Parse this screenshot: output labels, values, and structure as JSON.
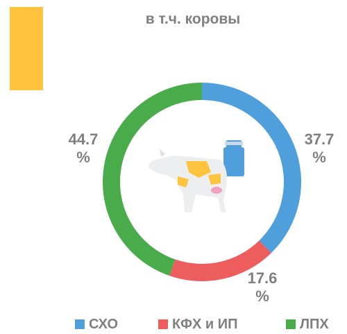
{
  "chart_data": {
    "type": "donut",
    "title": "в т.ч. коровы",
    "categories": [
      "СХО",
      "КФХ и ИП",
      "ЛПХ"
    ],
    "values": [
      37.7,
      17.6,
      44.7
    ],
    "value_labels": [
      "37.7 %",
      "17.6 %",
      "44.7 %"
    ],
    "colors": [
      "#4f9fdc",
      "#ee5d5d",
      "#4aab4a"
    ]
  }
}
